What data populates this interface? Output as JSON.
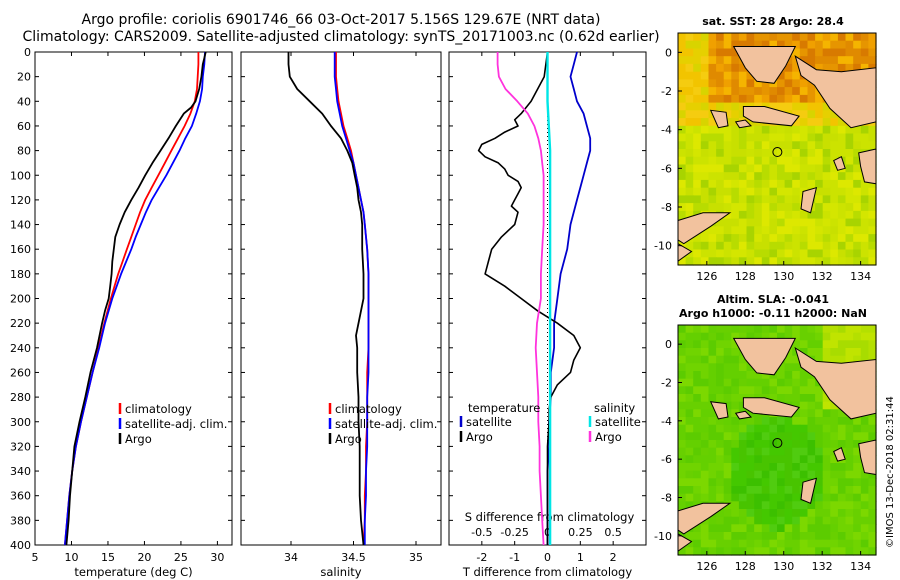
{
  "title_line1": "Argo profile: coriolis 6901746_66 03-Oct-2017 5.156S 129.67E (NRT data)",
  "title_line2": "Climatology: CARS2009. Satellite-adjusted climatology: synTS_20171003.nc (0.62d earlier)",
  "credit": "©IMOS 13-Dec-2018 02:31:44",
  "colors": {
    "climatology": "#ff0000",
    "satellite_adj": "#0000ff",
    "argo": "#000000",
    "t_satellite": "#0000cc",
    "s_satellite": "#00e6e6",
    "s_argo": "#ff33dd",
    "land": "#f2c29e"
  },
  "chart_data": [
    {
      "type": "line",
      "name": "temperature",
      "xlabel": "temperature (deg C)",
      "ylabel": "",
      "xlim": [
        5,
        32
      ],
      "ylim": [
        400,
        0
      ],
      "xticks": [
        5,
        10,
        15,
        20,
        25,
        30
      ],
      "yticks": [
        0,
        20,
        40,
        60,
        80,
        100,
        120,
        140,
        160,
        180,
        200,
        220,
        240,
        260,
        280,
        300,
        320,
        340,
        360,
        380,
        400
      ],
      "legend": [
        "climatology",
        "satellite-adj. clim.",
        "Argo"
      ],
      "legend_position": "middle-right",
      "series": [
        {
          "name": "climatology",
          "depth": [
            0,
            10,
            20,
            30,
            40,
            50,
            60,
            70,
            80,
            90,
            100,
            110,
            120,
            130,
            140,
            150,
            160,
            170,
            180,
            190,
            200,
            220,
            240,
            260,
            280,
            300,
            320,
            340,
            360,
            380,
            400
          ],
          "values": [
            27.4,
            27.4,
            27.3,
            27.2,
            26.9,
            26.3,
            25.5,
            24.6,
            23.7,
            22.8,
            21.9,
            21.0,
            20.1,
            19.4,
            18.8,
            18.2,
            17.6,
            17.0,
            16.4,
            15.9,
            15.4,
            14.5,
            13.7,
            12.9,
            12.1,
            11.3,
            10.6,
            10.1,
            9.7,
            9.4,
            9.1
          ]
        },
        {
          "name": "satellite-adj. clim.",
          "depth": [
            0,
            10,
            20,
            30,
            40,
            50,
            60,
            70,
            80,
            90,
            100,
            110,
            120,
            130,
            140,
            150,
            160,
            170,
            180,
            190,
            200,
            220,
            240,
            260,
            280,
            300,
            320,
            340,
            360,
            380,
            400
          ],
          "values": [
            28.3,
            28.2,
            28.0,
            27.9,
            27.6,
            27.1,
            26.5,
            25.6,
            24.8,
            23.9,
            23.0,
            22.0,
            21.0,
            20.2,
            19.5,
            18.8,
            18.2,
            17.5,
            16.8,
            16.2,
            15.6,
            14.6,
            13.8,
            12.9,
            12.1,
            11.3,
            10.6,
            10.1,
            9.7,
            9.4,
            9.1
          ]
        },
        {
          "name": "Argo",
          "depth": [
            0,
            5,
            10,
            20,
            30,
            40,
            45,
            50,
            60,
            70,
            80,
            90,
            100,
            110,
            120,
            130,
            140,
            150,
            160,
            170,
            180,
            190,
            200,
            210,
            220,
            240,
            260,
            280,
            300,
            320,
            340,
            360,
            380,
            400
          ],
          "values": [
            28.4,
            28.2,
            28.0,
            27.8,
            27.5,
            27.0,
            26.4,
            25.4,
            24.3,
            23.3,
            22.2,
            21.1,
            20.1,
            19.2,
            18.2,
            17.3,
            16.6,
            16.0,
            15.8,
            15.6,
            15.5,
            15.3,
            15.1,
            14.6,
            14.2,
            13.5,
            12.6,
            11.9,
            11.1,
            10.4,
            10.1,
            9.8,
            9.6,
            9.3
          ]
        }
      ]
    },
    {
      "type": "line",
      "name": "salinity",
      "xlabel": "salinity",
      "ylabel": "",
      "xlim": [
        33.6,
        35.2
      ],
      "ylim": [
        400,
        0
      ],
      "xticks": [
        34,
        34.5,
        35
      ],
      "xticklabels": [
        "34",
        "34.5",
        "35"
      ],
      "yticks": [
        0,
        20,
        40,
        60,
        80,
        100,
        120,
        140,
        160,
        180,
        200,
        220,
        240,
        260,
        280,
        300,
        320,
        340,
        360,
        380,
        400
      ],
      "legend": [
        "climatology",
        "satellite-adj. clim.",
        "Argo"
      ],
      "legend_position": "middle-right",
      "series": [
        {
          "name": "climatology",
          "depth": [
            0,
            10,
            20,
            30,
            40,
            50,
            60,
            70,
            80,
            90,
            100,
            110,
            120,
            130,
            140,
            150,
            160,
            180,
            200,
            220,
            240,
            260,
            280,
            300,
            320,
            340,
            360,
            380,
            400
          ],
          "values": [
            34.36,
            34.36,
            34.36,
            34.37,
            34.38,
            34.4,
            34.42,
            34.45,
            34.48,
            34.5,
            34.52,
            34.54,
            34.56,
            34.58,
            34.59,
            34.6,
            34.61,
            34.62,
            34.62,
            34.62,
            34.62,
            34.61,
            34.61,
            34.61,
            34.6,
            34.6,
            34.59,
            34.59,
            34.58
          ]
        },
        {
          "name": "satellite-adj. clim.",
          "depth": [
            0,
            10,
            20,
            30,
            40,
            50,
            60,
            70,
            80,
            90,
            100,
            110,
            120,
            130,
            140,
            150,
            160,
            180,
            200,
            220,
            240,
            260,
            280,
            300,
            320,
            340,
            360,
            380,
            400
          ],
          "values": [
            34.35,
            34.35,
            34.35,
            34.36,
            34.37,
            34.39,
            34.41,
            34.44,
            34.47,
            34.5,
            34.52,
            34.54,
            34.56,
            34.58,
            34.59,
            34.6,
            34.61,
            34.62,
            34.62,
            34.62,
            34.62,
            34.62,
            34.61,
            34.61,
            34.61,
            34.6,
            34.6,
            34.59,
            34.59
          ]
        },
        {
          "name": "Argo",
          "depth": [
            0,
            10,
            20,
            30,
            40,
            50,
            60,
            70,
            80,
            90,
            100,
            110,
            120,
            130,
            140,
            150,
            160,
            180,
            200,
            220,
            230,
            240,
            260,
            280,
            300,
            320,
            340,
            360,
            380,
            400
          ],
          "values": [
            33.98,
            33.98,
            33.99,
            34.05,
            34.15,
            34.25,
            34.32,
            34.4,
            34.45,
            34.49,
            34.51,
            34.53,
            34.54,
            34.56,
            34.57,
            34.57,
            34.57,
            34.58,
            34.58,
            34.54,
            34.52,
            34.53,
            34.53,
            34.54,
            34.54,
            34.55,
            34.55,
            34.55,
            34.56,
            34.58
          ]
        }
      ]
    },
    {
      "type": "line",
      "name": "difference",
      "xlabel": "T difference from climatology",
      "top_label": "S difference from climatology",
      "xlim": [
        -3,
        3
      ],
      "ylim": [
        400,
        0
      ],
      "xticks": [
        -2,
        -1,
        0,
        1,
        2
      ],
      "xticklabels": [
        "-2",
        "-1",
        "0",
        "1",
        "2"
      ],
      "s_xticks": [
        -0.5,
        -0.25,
        0,
        0.25,
        0.5
      ],
      "s_xticklabels": [
        "-0.5",
        "-0.25",
        "0",
        "0.25",
        "0.5"
      ],
      "yticks": [
        0,
        20,
        40,
        60,
        80,
        100,
        120,
        140,
        160,
        180,
        200,
        220,
        240,
        260,
        280,
        300,
        320,
        340,
        360,
        380,
        400
      ],
      "legend_temperature_title": "temperature",
      "legend_salinity_title": "salinity",
      "legend": [
        "satellite",
        "Argo",
        "satellite",
        "Argo"
      ],
      "legend_position": "middle",
      "series": [
        {
          "name": "temperature satellite",
          "depth": [
            0,
            10,
            20,
            30,
            40,
            50,
            60,
            70,
            80,
            90,
            100,
            110,
            120,
            140,
            160,
            180,
            200,
            220,
            240,
            260,
            280,
            300,
            320,
            340,
            360,
            380,
            400
          ],
          "values": [
            0.9,
            0.8,
            0.7,
            0.8,
            0.9,
            1.1,
            1.2,
            1.3,
            1.3,
            1.2,
            1.1,
            1.0,
            0.9,
            0.7,
            0.6,
            0.4,
            0.3,
            0.2,
            0.2,
            0.1,
            0.1,
            0.05,
            0.05,
            0.0,
            0.0,
            0.0,
            0.0
          ]
        },
        {
          "name": "temperature Argo",
          "depth": [
            0,
            20,
            40,
            50,
            55,
            60,
            65,
            70,
            75,
            80,
            85,
            90,
            95,
            100,
            105,
            110,
            115,
            120,
            125,
            130,
            140,
            150,
            160,
            170,
            180,
            190,
            200,
            210,
            220,
            230,
            240,
            250,
            260,
            270,
            280,
            290,
            300,
            320,
            340,
            360,
            380,
            400
          ],
          "values": [
            0.0,
            -0.1,
            -0.5,
            -0.8,
            -1.0,
            -0.9,
            -1.3,
            -1.6,
            -2.0,
            -2.1,
            -1.9,
            -1.5,
            -1.3,
            -1.2,
            -0.9,
            -0.8,
            -0.9,
            -1.0,
            -1.1,
            -0.9,
            -1.0,
            -1.4,
            -1.7,
            -1.8,
            -1.9,
            -1.3,
            -0.8,
            -0.3,
            0.3,
            0.8,
            1.0,
            0.8,
            0.7,
            0.3,
            0.1,
            0.05,
            0.05,
            0.0,
            0.0,
            0.0,
            0.0,
            0.0
          ]
        },
        {
          "name": "salinity satellite",
          "depth": [
            0,
            20,
            40,
            60,
            80,
            100,
            120,
            140,
            160,
            180,
            200,
            220,
            240,
            260,
            280,
            300,
            320,
            340,
            360,
            380,
            400
          ],
          "values": [
            0.0,
            0.0,
            0.0,
            0.01,
            0.02,
            0.02,
            0.02,
            0.02,
            0.02,
            0.02,
            0.02,
            0.02,
            0.02,
            0.02,
            0.02,
            0.02,
            0.02,
            0.02,
            0.02,
            0.02,
            0.02
          ]
        },
        {
          "name": "salinity Argo",
          "depth": [
            0,
            10,
            20,
            30,
            40,
            50,
            60,
            70,
            80,
            90,
            100,
            110,
            120,
            140,
            160,
            180,
            200,
            220,
            240,
            260,
            280,
            300,
            320,
            340,
            360,
            380,
            400
          ],
          "values": [
            -0.38,
            -0.38,
            -0.37,
            -0.32,
            -0.23,
            -0.15,
            -0.1,
            -0.07,
            -0.05,
            -0.04,
            -0.03,
            -0.03,
            -0.03,
            -0.03,
            -0.04,
            -0.05,
            -0.05,
            -0.08,
            -0.09,
            -0.08,
            -0.07,
            -0.07,
            -0.06,
            -0.06,
            -0.05,
            -0.04,
            -0.03
          ]
        }
      ]
    },
    {
      "type": "heatmap",
      "name": "sst_map",
      "title": "sat. SST: 28 Argo: 28.4",
      "xlim": [
        124.5,
        134.8
      ],
      "ylim": [
        -11,
        1
      ],
      "xticks": [
        126,
        128,
        130,
        132,
        134
      ],
      "yticks": [
        0,
        -2,
        -4,
        -6,
        -8,
        -10
      ],
      "argo_position": {
        "lon": 129.67,
        "lat": -5.156
      }
    },
    {
      "type": "heatmap",
      "name": "sla_map",
      "title": "Altim. SLA: -0.041",
      "subtitle": "Argo h1000: -0.11 h2000: NaN",
      "xlim": [
        124.5,
        134.8
      ],
      "ylim": [
        -11,
        1
      ],
      "xticks": [
        126,
        128,
        130,
        132,
        134
      ],
      "yticks": [
        0,
        -2,
        -4,
        -6,
        -8,
        -10
      ],
      "argo_position": {
        "lon": 129.67,
        "lat": -5.156
      }
    }
  ]
}
